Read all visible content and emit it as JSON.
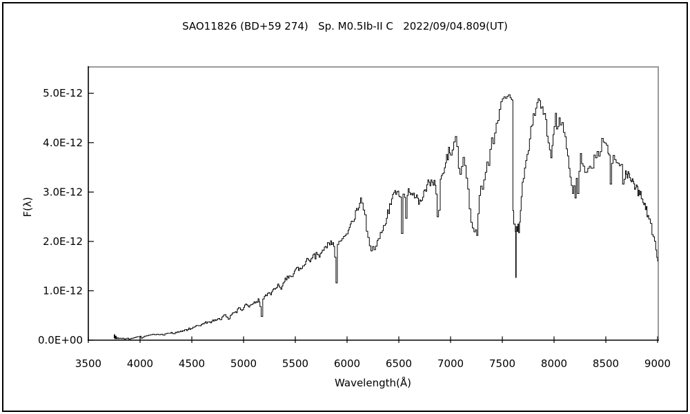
{
  "figure": {
    "background": "#ffffff",
    "outer_border_color": "#000000"
  },
  "chart_data": {
    "type": "line",
    "title": "SAO11826 (BD+59 274)   Sp. M0.5Ib-II C   2022/09/04.809(UT)",
    "xlabel": "Wavelength(Å)",
    "ylabel": "F(λ)",
    "grid": false,
    "legend": "none",
    "line_color": "#000000",
    "frame_colors": {
      "top": "#9a9a9a",
      "right": "#9a9a9a",
      "left": "#000000",
      "bottom": "#000000"
    },
    "xlim": [
      3500,
      9000
    ],
    "ylim": [
      0,
      5.52e-12
    ],
    "x_ticks": [
      3500,
      4000,
      4500,
      5000,
      5500,
      6000,
      6500,
      7000,
      7500,
      8000,
      8500,
      9000
    ],
    "y_ticks": [
      {
        "f": 0,
        "label": "0.0E+00"
      },
      {
        "f": 1,
        "label": "1.0E-12"
      },
      {
        "f": 2,
        "label": "2.0E-12"
      },
      {
        "f": 3,
        "label": "3.0E-12"
      },
      {
        "f": 4,
        "label": "4.0E-12"
      },
      {
        "f": 5,
        "label": "5.0E-12"
      }
    ],
    "flux_unit_note": "flux values below are in units of 1.0E-12",
    "points_e12": [
      [
        3745,
        0.05
      ],
      [
        3750,
        0.11
      ],
      [
        3756,
        0.03
      ],
      [
        3763,
        0.08
      ],
      [
        3770,
        0.03
      ],
      [
        3778,
        0.05
      ],
      [
        3788,
        0.03
      ],
      [
        3800,
        0.04
      ],
      [
        3815,
        0.03
      ],
      [
        3830,
        0.04
      ],
      [
        3845,
        0.02
      ],
      [
        3860,
        0.03
      ],
      [
        3875,
        0.04
      ],
      [
        3890,
        0.02
      ],
      [
        3905,
        0.03
      ],
      [
        3920,
        0.04
      ],
      [
        3940,
        0.05
      ],
      [
        3955,
        0.06
      ],
      [
        3970,
        0.07
      ],
      [
        3985,
        0.07
      ],
      [
        4000,
        0.08
      ],
      [
        4010,
        0.04
      ],
      [
        4025,
        0.06
      ],
      [
        4040,
        0.08
      ],
      [
        4060,
        0.09
      ],
      [
        4080,
        0.1
      ],
      [
        4100,
        0.11
      ],
      [
        4120,
        0.12
      ],
      [
        4140,
        0.11
      ],
      [
        4160,
        0.12
      ],
      [
        4180,
        0.11
      ],
      [
        4200,
        0.12
      ],
      [
        4220,
        0.1
      ],
      [
        4240,
        0.13
      ],
      [
        4260,
        0.14
      ],
      [
        4280,
        0.14
      ],
      [
        4300,
        0.16
      ],
      [
        4320,
        0.13
      ],
      [
        4340,
        0.16
      ],
      [
        4360,
        0.17
      ],
      [
        4380,
        0.17
      ],
      [
        4400,
        0.19
      ],
      [
        4420,
        0.2
      ],
      [
        4440,
        0.21
      ],
      [
        4460,
        0.22
      ],
      [
        4480,
        0.23
      ],
      [
        4500,
        0.25
      ],
      [
        4520,
        0.27
      ],
      [
        4540,
        0.28
      ],
      [
        4560,
        0.3
      ],
      [
        4580,
        0.31
      ],
      [
        4600,
        0.33
      ],
      [
        4620,
        0.35
      ],
      [
        4640,
        0.36
      ],
      [
        4660,
        0.37
      ],
      [
        4680,
        0.35
      ],
      [
        4700,
        0.39
      ],
      [
        4720,
        0.41
      ],
      [
        4740,
        0.4
      ],
      [
        4760,
        0.44
      ],
      [
        4780,
        0.42
      ],
      [
        4800,
        0.48
      ],
      [
        4820,
        0.51
      ],
      [
        4840,
        0.49
      ],
      [
        4861,
        0.41
      ],
      [
        4880,
        0.54
      ],
      [
        4900,
        0.58
      ],
      [
        4920,
        0.55
      ],
      [
        4940,
        0.61
      ],
      [
        4960,
        0.64
      ],
      [
        4980,
        0.62
      ],
      [
        5000,
        0.68
      ],
      [
        5020,
        0.71
      ],
      [
        5040,
        0.67
      ],
      [
        5060,
        0.74
      ],
      [
        5080,
        0.72
      ],
      [
        5100,
        0.8
      ],
      [
        5120,
        0.76
      ],
      [
        5140,
        0.85
      ],
      [
        5158,
        0.68
      ],
      [
        5170,
        0.5
      ],
      [
        5185,
        0.82
      ],
      [
        5200,
        0.88
      ],
      [
        5220,
        0.92
      ],
      [
        5240,
        0.96
      ],
      [
        5260,
        0.92
      ],
      [
        5280,
        1.0
      ],
      [
        5300,
        1.05
      ],
      [
        5320,
        1.08
      ],
      [
        5340,
        1.12
      ],
      [
        5360,
        1.06
      ],
      [
        5380,
        1.16
      ],
      [
        5400,
        1.22
      ],
      [
        5420,
        1.26
      ],
      [
        5440,
        1.31
      ],
      [
        5460,
        1.26
      ],
      [
        5480,
        1.36
      ],
      [
        5500,
        1.42
      ],
      [
        5520,
        1.46
      ],
      [
        5540,
        1.43
      ],
      [
        5560,
        1.5
      ],
      [
        5580,
        1.54
      ],
      [
        5600,
        1.58
      ],
      [
        5620,
        1.62
      ],
      [
        5640,
        1.58
      ],
      [
        5660,
        1.65
      ],
      [
        5680,
        1.69
      ],
      [
        5700,
        1.72
      ],
      [
        5720,
        1.76
      ],
      [
        5740,
        1.73
      ],
      [
        5760,
        1.8
      ],
      [
        5780,
        1.85
      ],
      [
        5800,
        1.88
      ],
      [
        5820,
        1.94
      ],
      [
        5840,
        1.99
      ],
      [
        5860,
        2.03
      ],
      [
        5880,
        1.68
      ],
      [
        5893,
        1.16
      ],
      [
        5906,
        1.94
      ],
      [
        5920,
        2.04
      ],
      [
        5935,
        1.98
      ],
      [
        5950,
        2.04
      ],
      [
        5965,
        2.1
      ],
      [
        5980,
        2.07
      ],
      [
        6000,
        2.16
      ],
      [
        6020,
        2.25
      ],
      [
        6040,
        2.35
      ],
      [
        6060,
        2.45
      ],
      [
        6080,
        2.57
      ],
      [
        6100,
        2.67
      ],
      [
        6120,
        2.77
      ],
      [
        6140,
        2.84
      ],
      [
        6155,
        2.7
      ],
      [
        6170,
        2.46
      ],
      [
        6185,
        2.22
      ],
      [
        6200,
        2.06
      ],
      [
        6215,
        1.93
      ],
      [
        6230,
        1.8
      ],
      [
        6245,
        1.89
      ],
      [
        6260,
        1.84
      ],
      [
        6275,
        1.96
      ],
      [
        6290,
        2.03
      ],
      [
        6310,
        2.13
      ],
      [
        6330,
        2.23
      ],
      [
        6350,
        2.31
      ],
      [
        6370,
        2.43
      ],
      [
        6390,
        2.56
      ],
      [
        6410,
        2.69
      ],
      [
        6430,
        2.81
      ],
      [
        6450,
        2.93
      ],
      [
        6470,
        3.02
      ],
      [
        6490,
        2.96
      ],
      [
        6510,
        2.9
      ],
      [
        6525,
        2.16
      ],
      [
        6540,
        2.96
      ],
      [
        6555,
        2.89
      ],
      [
        6565,
        2.47
      ],
      [
        6580,
        2.93
      ],
      [
        6600,
        3.01
      ],
      [
        6620,
        3.06
      ],
      [
        6640,
        3.02
      ],
      [
        6660,
        2.95
      ],
      [
        6680,
        2.87
      ],
      [
        6700,
        2.82
      ],
      [
        6720,
        2.9
      ],
      [
        6740,
        2.99
      ],
      [
        6760,
        3.09
      ],
      [
        6780,
        3.16
      ],
      [
        6800,
        3.23
      ],
      [
        6820,
        3.13
      ],
      [
        6840,
        3.19
      ],
      [
        6858,
        2.96
      ],
      [
        6870,
        2.5
      ],
      [
        6884,
        2.63
      ],
      [
        6900,
        3.26
      ],
      [
        6920,
        3.36
      ],
      [
        6940,
        3.49
      ],
      [
        6960,
        3.66
      ],
      [
        6980,
        3.88
      ],
      [
        7000,
        3.7
      ],
      [
        7015,
        3.83
      ],
      [
        7030,
        3.96
      ],
      [
        7045,
        4.16
      ],
      [
        7060,
        3.92
      ],
      [
        7075,
        3.48
      ],
      [
        7090,
        3.42
      ],
      [
        7105,
        3.55
      ],
      [
        7120,
        3.62
      ],
      [
        7135,
        3.57
      ],
      [
        7150,
        3.36
      ],
      [
        7165,
        3.06
      ],
      [
        7180,
        2.66
      ],
      [
        7195,
        2.46
      ],
      [
        7210,
        2.33
      ],
      [
        7225,
        2.26
      ],
      [
        7240,
        2.19
      ],
      [
        7252,
        2.12
      ],
      [
        7264,
        2.56
      ],
      [
        7276,
        2.93
      ],
      [
        7290,
        3.03
      ],
      [
        7305,
        3.11
      ],
      [
        7320,
        3.31
      ],
      [
        7335,
        3.49
      ],
      [
        7350,
        3.56
      ],
      [
        7365,
        3.63
      ],
      [
        7380,
        3.9
      ],
      [
        7395,
        4.02
      ],
      [
        7410,
        4.1
      ],
      [
        7425,
        4.26
      ],
      [
        7440,
        4.43
      ],
      [
        7455,
        4.59
      ],
      [
        7470,
        4.73
      ],
      [
        7485,
        4.83
      ],
      [
        7500,
        4.89
      ],
      [
        7515,
        4.93
      ],
      [
        7530,
        4.9
      ],
      [
        7545,
        4.94
      ],
      [
        7560,
        4.97
      ],
      [
        7575,
        4.91
      ],
      [
        7588,
        4.87
      ],
      [
        7598,
        4.86
      ],
      [
        7602,
        2.62
      ],
      [
        7610,
        2.42
      ],
      [
        7618,
        2.3
      ],
      [
        7625,
        2.2
      ],
      [
        7629,
        1.27
      ],
      [
        7634,
        2.3
      ],
      [
        7642,
        2.22
      ],
      [
        7650,
        2.28
      ],
      [
        7658,
        2.18
      ],
      [
        7666,
        2.42
      ],
      [
        7674,
        2.65
      ],
      [
        7682,
        2.98
      ],
      [
        7692,
        3.14
      ],
      [
        7702,
        3.22
      ],
      [
        7714,
        3.56
      ],
      [
        7726,
        3.66
      ],
      [
        7738,
        3.73
      ],
      [
        7750,
        3.93
      ],
      [
        7762,
        4.16
      ],
      [
        7774,
        4.33
      ],
      [
        7786,
        4.46
      ],
      [
        7798,
        4.56
      ],
      [
        7810,
        4.66
      ],
      [
        7822,
        4.73
      ],
      [
        7834,
        4.81
      ],
      [
        7846,
        4.89
      ],
      [
        7858,
        4.85
      ],
      [
        7870,
        4.78
      ],
      [
        7882,
        4.68
      ],
      [
        7894,
        4.58
      ],
      [
        7906,
        4.48
      ],
      [
        7918,
        4.35
      ],
      [
        7930,
        4.22
      ],
      [
        7942,
        4.05
      ],
      [
        7955,
        3.85
      ],
      [
        7968,
        3.7
      ],
      [
        7980,
        3.95
      ],
      [
        7990,
        4.2
      ],
      [
        8000,
        4.42
      ],
      [
        8012,
        4.48
      ],
      [
        8024,
        4.4
      ],
      [
        8036,
        4.45
      ],
      [
        8048,
        4.38
      ],
      [
        8060,
        4.42
      ],
      [
        8075,
        4.33
      ],
      [
        8090,
        4.28
      ],
      [
        8105,
        4.15
      ],
      [
        8118,
        3.95
      ],
      [
        8130,
        3.72
      ],
      [
        8142,
        3.48
      ],
      [
        8154,
        3.25
      ],
      [
        8166,
        3.12
      ],
      [
        8178,
        3.02
      ],
      [
        8190,
        3.22
      ],
      [
        8202,
        2.95
      ],
      [
        8214,
        3.28
      ],
      [
        8226,
        2.97
      ],
      [
        8240,
        3.42
      ],
      [
        8254,
        3.78
      ],
      [
        8266,
        3.48
      ],
      [
        8280,
        3.42
      ],
      [
        8295,
        3.46
      ],
      [
        8310,
        3.44
      ],
      [
        8325,
        3.48
      ],
      [
        8340,
        3.46
      ],
      [
        8355,
        3.52
      ],
      [
        8370,
        3.58
      ],
      [
        8385,
        3.64
      ],
      [
        8400,
        3.7
      ],
      [
        8415,
        3.76
      ],
      [
        8430,
        3.84
      ],
      [
        8445,
        3.92
      ],
      [
        8460,
        3.98
      ],
      [
        8475,
        4.02
      ],
      [
        8490,
        4.05
      ],
      [
        8505,
        3.98
      ],
      [
        8520,
        3.88
      ],
      [
        8530,
        3.75
      ],
      [
        8542,
        3.16
      ],
      [
        8556,
        3.58
      ],
      [
        8570,
        3.64
      ],
      [
        8585,
        3.62
      ],
      [
        8600,
        3.6
      ],
      [
        8615,
        3.63
      ],
      [
        8630,
        3.6
      ],
      [
        8645,
        3.56
      ],
      [
        8662,
        3.16
      ],
      [
        8676,
        3.35
      ],
      [
        8690,
        3.38
      ],
      [
        8706,
        3.33
      ],
      [
        8722,
        3.28
      ],
      [
        8738,
        3.24
      ],
      [
        8754,
        3.2
      ],
      [
        8770,
        3.16
      ],
      [
        8786,
        3.1
      ],
      [
        8802,
        3.04
      ],
      [
        8818,
        2.98
      ],
      [
        8834,
        2.92
      ],
      [
        8850,
        2.85
      ],
      [
        8866,
        2.77
      ],
      [
        8882,
        2.67
      ],
      [
        8898,
        2.56
      ],
      [
        8914,
        2.46
      ],
      [
        8930,
        2.34
      ],
      [
        8945,
        2.2
      ],
      [
        8958,
        2.08
      ],
      [
        8970,
        1.95
      ],
      [
        8982,
        1.82
      ],
      [
        8992,
        1.7
      ],
      [
        9000,
        1.6
      ]
    ]
  }
}
